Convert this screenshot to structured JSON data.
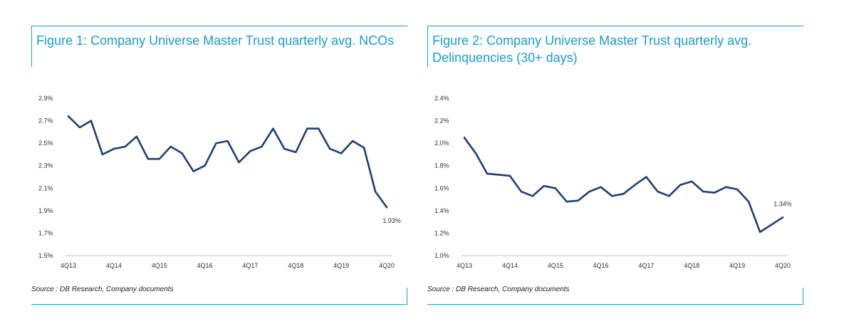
{
  "colors": {
    "accent": "#1a9bd7",
    "line": "#1f3f73",
    "axis": "#bfbfbf",
    "text": "#333333"
  },
  "figures": [
    {
      "title": "Figure 1: Company Universe Master Trust quarterly avg. NCOs",
      "source": "Source : DB Research, Company documents",
      "chart_data": {
        "type": "line",
        "title": "Figure 1: Company Universe Master Trust quarterly avg. NCOs",
        "xlabel": "",
        "ylabel": "",
        "ylim": [
          1.5,
          2.9
        ],
        "y_ticks": [
          "1.5%",
          "1.7%",
          "1.9%",
          "2.1%",
          "2.3%",
          "2.5%",
          "2.7%",
          "2.9%"
        ],
        "x_tick_labels": [
          "4Q13",
          "4Q14",
          "4Q15",
          "4Q16",
          "4Q17",
          "4Q18",
          "4Q19",
          "4Q20"
        ],
        "x": [
          "4Q13",
          "1Q14",
          "2Q14",
          "3Q14",
          "4Q14",
          "1Q15",
          "2Q15",
          "3Q15",
          "4Q15",
          "1Q16",
          "2Q16",
          "3Q16",
          "4Q16",
          "1Q17",
          "2Q17",
          "3Q17",
          "4Q17",
          "1Q18",
          "2Q18",
          "3Q18",
          "4Q18",
          "1Q19",
          "2Q19",
          "3Q19",
          "4Q19",
          "1Q20",
          "2Q20",
          "3Q20",
          "4Q20"
        ],
        "series": [
          {
            "name": "NCOs",
            "values": [
              2.74,
              2.64,
              2.7,
              2.4,
              2.45,
              2.47,
              2.56,
              2.36,
              2.36,
              2.47,
              2.41,
              2.25,
              2.3,
              2.5,
              2.52,
              2.33,
              2.43,
              2.47,
              2.63,
              2.45,
              2.42,
              2.63,
              2.63,
              2.45,
              2.41,
              2.52,
              2.46,
              2.07,
              1.93
            ]
          }
        ],
        "annotations": [
          {
            "label": "1.93%",
            "x": "4Q20",
            "y": 1.93
          }
        ]
      }
    },
    {
      "title": "Figure 2: Company Universe Master Trust quarterly avg. Delinquencies (30+ days)",
      "source": "Source : DB Research, Company documents",
      "chart_data": {
        "type": "line",
        "title": "Figure 2: Company Universe Master Trust quarterly avg. Delinquencies (30+ days)",
        "xlabel": "",
        "ylabel": "",
        "ylim": [
          1.0,
          2.4
        ],
        "y_ticks": [
          "1.0%",
          "1.2%",
          "1.4%",
          "1.6%",
          "1.8%",
          "2.0%",
          "2.2%",
          "2.4%"
        ],
        "x_tick_labels": [
          "4Q13",
          "4Q14",
          "4Q15",
          "4Q16",
          "4Q17",
          "4Q18",
          "4Q19",
          "4Q20"
        ],
        "x": [
          "4Q13",
          "1Q14",
          "2Q14",
          "3Q14",
          "4Q14",
          "1Q15",
          "2Q15",
          "3Q15",
          "4Q15",
          "1Q16",
          "2Q16",
          "3Q16",
          "4Q16",
          "1Q17",
          "2Q17",
          "3Q17",
          "4Q17",
          "1Q18",
          "2Q18",
          "3Q18",
          "4Q18",
          "1Q19",
          "2Q19",
          "3Q19",
          "4Q19",
          "1Q20",
          "2Q20",
          "3Q20",
          "4Q20"
        ],
        "series": [
          {
            "name": "Delinquencies (30+ days)",
            "values": [
              2.05,
              1.91,
              1.73,
              null,
              1.71,
              1.57,
              1.53,
              1.62,
              1.6,
              1.48,
              1.49,
              1.57,
              1.61,
              1.53,
              1.55,
              1.63,
              1.7,
              1.57,
              1.53,
              1.63,
              1.66,
              1.57,
              1.56,
              1.61,
              1.59,
              1.48,
              1.21,
              null,
              1.34
            ]
          }
        ],
        "annotations": [
          {
            "label": "1.34%",
            "x": "4Q20",
            "y": 1.34
          }
        ]
      }
    }
  ]
}
